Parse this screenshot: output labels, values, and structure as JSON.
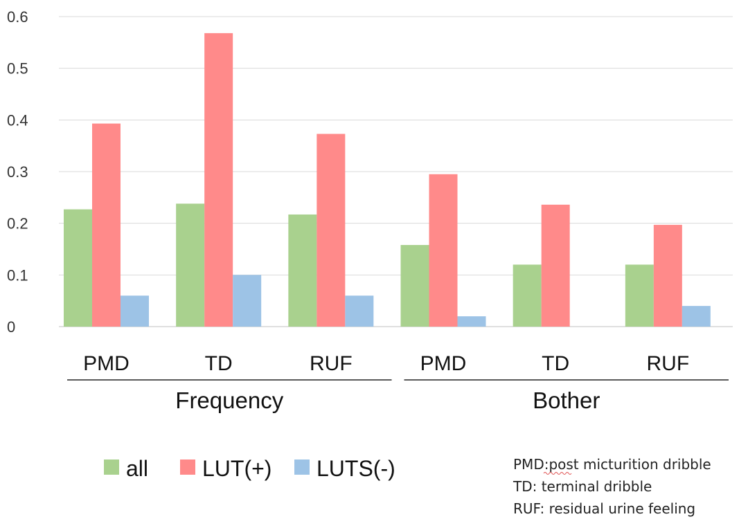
{
  "chart_data": {
    "type": "bar",
    "groups": [
      {
        "name": "Frequency",
        "categories": [
          "PMD",
          "TD",
          "RUF"
        ]
      },
      {
        "name": "Bother",
        "categories": [
          "PMD",
          "TD",
          "RUF"
        ]
      }
    ],
    "categories": [
      "PMD",
      "TD",
      "RUF",
      "PMD",
      "TD",
      "RUF"
    ],
    "series": [
      {
        "name": "all",
        "color": "#a9d18e",
        "values": [
          0.227,
          0.238,
          0.217,
          0.158,
          0.12,
          0.12
        ]
      },
      {
        "name": "LUT(+)",
        "color": "#ff8a8a",
        "values": [
          0.393,
          0.568,
          0.373,
          0.295,
          0.236,
          0.197
        ]
      },
      {
        "name": "LUTS(-)",
        "color": "#9dc3e6",
        "values": [
          0.06,
          0.1,
          0.06,
          0.02,
          0,
          0.04
        ]
      }
    ],
    "yticks": [
      "0",
      "0.1",
      "0.2",
      "0.3",
      "0.4",
      "0.5",
      "0.6"
    ],
    "ylim": [
      0,
      0.6
    ],
    "grid": true,
    "legend_position": "bottom-left"
  },
  "notes": [
    "PMD:post micturition dribble",
    "TD: terminal dribble",
    "RUF: residual urine feeling"
  ]
}
